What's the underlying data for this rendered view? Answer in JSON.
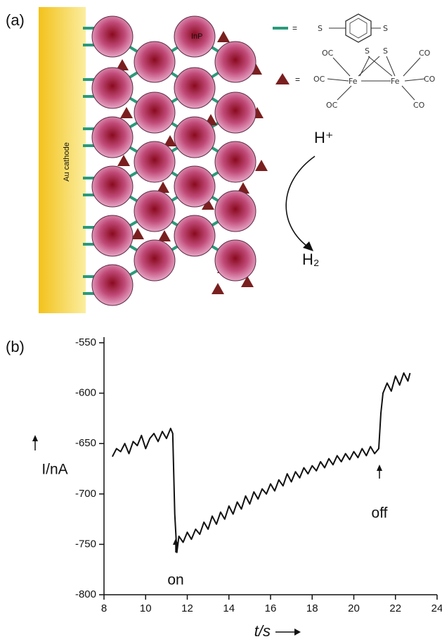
{
  "panels": {
    "a": "(a)",
    "b": "(b)"
  },
  "diagram": {
    "electrode": "Au cathode",
    "particle": "InP",
    "linker": [
      "=",
      "S",
      "S"
    ],
    "catalyst_eq": "=",
    "complex_labels": [
      "OC",
      "S",
      "S",
      "CO",
      "OC",
      "Fe",
      "Fe",
      "CO",
      "OC",
      "CO"
    ],
    "reactant": "H⁺",
    "product": "H₂"
  },
  "chart_data": {
    "type": "line",
    "xlabel": "t/s",
    "ylabel": "I/nA",
    "color": "#111111",
    "annotations": [
      "on",
      "off"
    ],
    "xlim": [
      8,
      24
    ],
    "xticks": [
      8,
      10,
      12,
      14,
      16,
      18,
      20,
      22,
      24
    ],
    "ylim": [
      -800,
      -550
    ],
    "yticks": [
      -550,
      -600,
      -650,
      -700,
      -750,
      -800
    ],
    "x": [
      8.4,
      8.6,
      8.8,
      9.0,
      9.2,
      9.4,
      9.6,
      9.8,
      10.0,
      10.2,
      10.4,
      10.6,
      10.8,
      11.0,
      11.2,
      11.3,
      11.4,
      11.5,
      11.6,
      11.8,
      12.0,
      12.2,
      12.4,
      12.6,
      12.8,
      13.0,
      13.2,
      13.4,
      13.6,
      13.8,
      14.0,
      14.2,
      14.4,
      14.6,
      14.8,
      15.0,
      15.2,
      15.4,
      15.6,
      15.8,
      16.0,
      16.2,
      16.4,
      16.6,
      16.8,
      17.0,
      17.2,
      17.4,
      17.6,
      17.8,
      18.0,
      18.2,
      18.4,
      18.6,
      18.8,
      19.0,
      19.2,
      19.4,
      19.6,
      19.8,
      20.0,
      20.2,
      20.4,
      20.6,
      20.8,
      21.0,
      21.2,
      21.3,
      21.4,
      21.6,
      21.8,
      22.0,
      22.2,
      22.4,
      22.6,
      22.7
    ],
    "values": [
      -663,
      -655,
      -658,
      -650,
      -660,
      -648,
      -652,
      -642,
      -655,
      -645,
      -640,
      -648,
      -638,
      -645,
      -635,
      -640,
      -720,
      -758,
      -742,
      -748,
      -738,
      -745,
      -735,
      -740,
      -728,
      -735,
      -722,
      -730,
      -718,
      -725,
      -712,
      -720,
      -708,
      -715,
      -702,
      -710,
      -698,
      -705,
      -695,
      -700,
      -690,
      -697,
      -686,
      -692,
      -680,
      -688,
      -678,
      -684,
      -674,
      -680,
      -672,
      -677,
      -668,
      -674,
      -665,
      -671,
      -662,
      -668,
      -660,
      -666,
      -658,
      -664,
      -655,
      -662,
      -653,
      -660,
      -655,
      -620,
      -600,
      -590,
      -598,
      -583,
      -592,
      -580,
      -588,
      -580
    ]
  }
}
